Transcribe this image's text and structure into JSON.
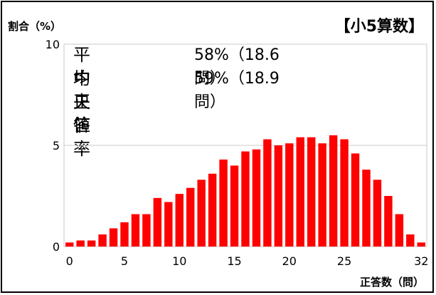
{
  "chart_data": {
    "type": "bar",
    "title": "【小5算数】",
    "ylabel": "割合（%）",
    "xlabel": "正答数（問）",
    "ylim": [
      0,
      10
    ],
    "yticks": [
      "0",
      "5",
      "10"
    ],
    "xticks": [
      "0",
      "5",
      "10",
      "15",
      "20",
      "25",
      "32"
    ],
    "xtick_values": [
      0,
      5,
      10,
      15,
      20,
      25,
      32
    ],
    "x": [
      0,
      1,
      2,
      3,
      4,
      5,
      6,
      7,
      8,
      9,
      10,
      11,
      12,
      13,
      14,
      15,
      16,
      17,
      18,
      19,
      20,
      21,
      22,
      23,
      24,
      25,
      26,
      27,
      28,
      29,
      30,
      31,
      32
    ],
    "values": [
      0.2,
      0.3,
      0.3,
      0.6,
      0.9,
      1.2,
      1.6,
      1.6,
      2.4,
      2.2,
      2.6,
      2.9,
      3.3,
      3.6,
      4.3,
      4.0,
      4.7,
      4.8,
      5.3,
      5.0,
      5.1,
      5.4,
      5.4,
      5.1,
      5.5,
      5.3,
      4.6,
      3.8,
      3.3,
      2.5,
      1.6,
      0.6,
      0.2
    ],
    "bar_color": "#ff0000",
    "grid": "horizontal at 5 and 10",
    "stats": {
      "mean_label": "平均正答率",
      "mean_value": "58%（18.6 問）",
      "median_label": "中央値",
      "median_value": "59%（18.9 問）"
    }
  }
}
